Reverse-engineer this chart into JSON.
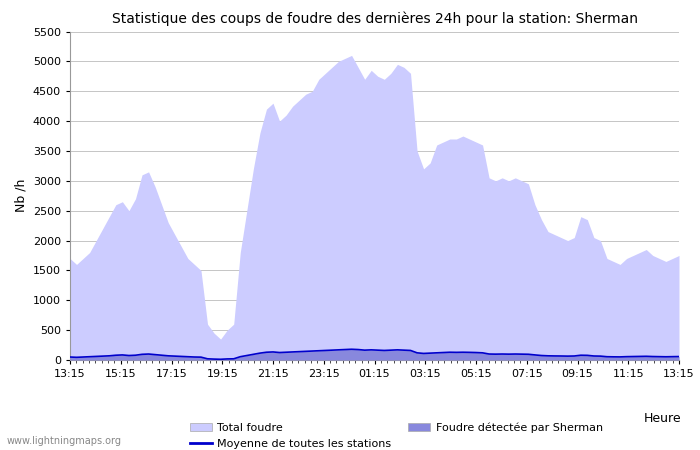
{
  "title": "Statistique des coups de foudre des dernières 24h pour la station: Sherman",
  "xlabel": "Heure",
  "ylabel": "Nb /h",
  "ylim": [
    0,
    5500
  ],
  "yticks": [
    0,
    500,
    1000,
    1500,
    2000,
    2500,
    3000,
    3500,
    4000,
    4500,
    5000,
    5500
  ],
  "x_labels": [
    "13:15",
    "15:15",
    "17:15",
    "19:15",
    "21:15",
    "23:15",
    "01:15",
    "03:15",
    "05:15",
    "07:15",
    "09:15",
    "11:15",
    "13:15"
  ],
  "total_foudre_color": "#ccccff",
  "sherman_color": "#8888dd",
  "moyenne_color": "#0000cc",
  "background_color": "#ffffff",
  "grid_color": "#bbbbbb",
  "watermark": "www.lightningmaps.org",
  "total_foudre": [
    1700,
    1600,
    1700,
    1800,
    2000,
    2200,
    2400,
    2600,
    2650,
    2500,
    2700,
    3100,
    3150,
    2900,
    2600,
    2300,
    2100,
    1900,
    1700,
    1600,
    1500,
    600,
    450,
    350,
    500,
    600,
    1800,
    2500,
    3200,
    3800,
    4200,
    4300,
    4000,
    4100,
    4250,
    4350,
    4450,
    4500,
    4700,
    4800,
    4900,
    5000,
    5050,
    5100,
    4900,
    4700,
    4850,
    4750,
    4700,
    4800,
    4950,
    4900,
    4800,
    3500,
    3200,
    3300,
    3600,
    3650,
    3700,
    3700,
    3750,
    3700,
    3650,
    3600,
    3050,
    3000,
    3050,
    3000,
    3050,
    3000,
    2950,
    2600,
    2350,
    2150,
    2100,
    2050,
    2000,
    2050,
    2400,
    2350,
    2050,
    2000,
    1700,
    1650,
    1600,
    1700,
    1750,
    1800,
    1850,
    1750,
    1700,
    1650,
    1700,
    1750
  ],
  "sherman_detected": [
    50,
    45,
    50,
    55,
    60,
    65,
    70,
    80,
    85,
    75,
    80,
    95,
    100,
    90,
    80,
    70,
    65,
    60,
    55,
    50,
    48,
    20,
    15,
    12,
    18,
    20,
    55,
    75,
    95,
    115,
    130,
    135,
    125,
    130,
    135,
    140,
    145,
    150,
    155,
    160,
    165,
    170,
    175,
    180,
    175,
    165,
    170,
    165,
    160,
    165,
    170,
    165,
    160,
    120,
    110,
    115,
    120,
    125,
    130,
    128,
    130,
    128,
    125,
    120,
    100,
    98,
    100,
    98,
    100,
    98,
    96,
    85,
    75,
    70,
    68,
    67,
    65,
    67,
    80,
    78,
    67,
    65,
    55,
    53,
    52,
    56,
    58,
    60,
    62,
    58,
    56,
    54,
    56,
    58
  ],
  "moyenne": [
    50,
    45,
    50,
    55,
    60,
    65,
    70,
    80,
    85,
    75,
    80,
    95,
    100,
    90,
    80,
    70,
    65,
    60,
    55,
    50,
    48,
    20,
    15,
    12,
    18,
    20,
    55,
    75,
    95,
    115,
    130,
    135,
    125,
    130,
    135,
    140,
    145,
    150,
    155,
    160,
    165,
    170,
    175,
    180,
    175,
    165,
    170,
    165,
    160,
    165,
    170,
    165,
    160,
    120,
    110,
    115,
    120,
    125,
    130,
    128,
    130,
    128,
    125,
    120,
    100,
    98,
    100,
    98,
    100,
    98,
    96,
    85,
    75,
    70,
    68,
    67,
    65,
    67,
    80,
    78,
    67,
    65,
    55,
    53,
    52,
    56,
    58,
    60,
    62,
    58,
    56,
    54,
    56,
    58
  ]
}
